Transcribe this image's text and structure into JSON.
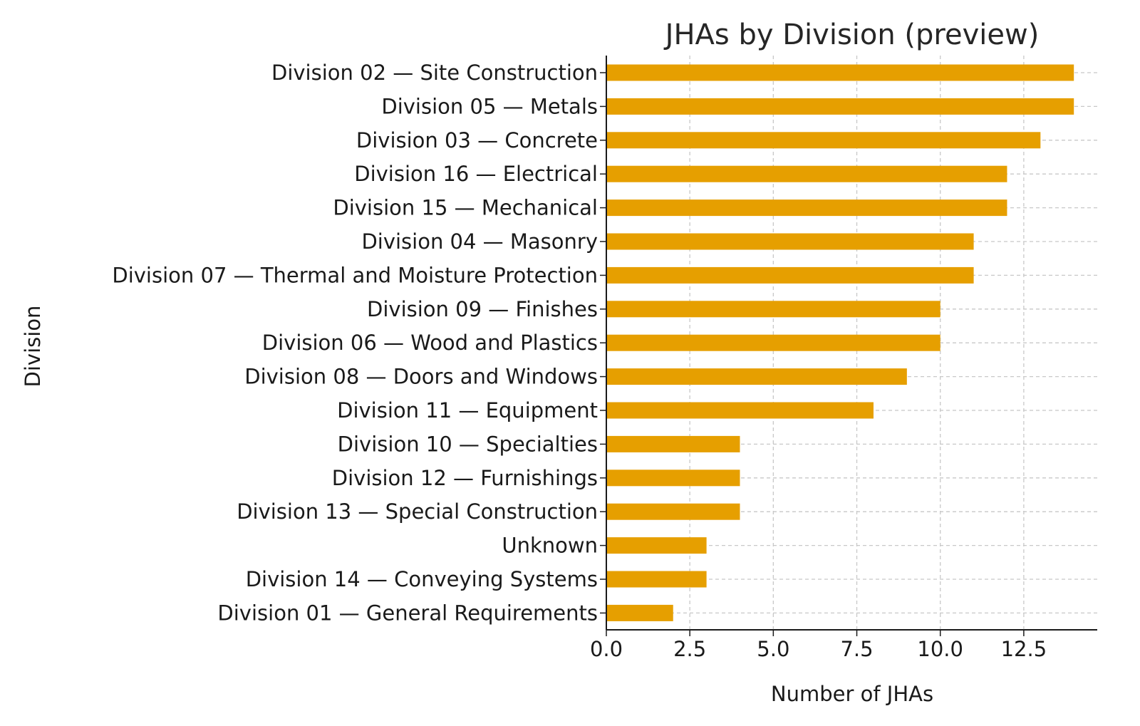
{
  "chart_data": {
    "type": "bar",
    "orientation": "horizontal",
    "title": "JHAs by Division (preview)",
    "xlabel": "Number of JHAs",
    "ylabel": "Division",
    "categories": [
      "Division 02 — Site Construction",
      "Division 05 — Metals",
      "Division 03 — Concrete",
      "Division 16 — Electrical",
      "Division 15 — Mechanical",
      "Division 04 — Masonry",
      "Division 07 — Thermal and Moisture Protection",
      "Division 09 — Finishes",
      "Division 06 — Wood and Plastics",
      "Division 08 — Doors and Windows",
      "Division 11 — Equipment",
      "Division 10 — Specialties",
      "Division 12 — Furnishings",
      "Division 13 — Special Construction",
      "Unknown",
      "Division 14 — Conveying Systems",
      "Division 01 — General Requirements"
    ],
    "values": [
      14,
      14,
      13,
      12,
      12,
      11,
      11,
      10,
      10,
      9,
      8,
      4,
      4,
      4,
      3,
      3,
      2
    ],
    "xlim": [
      0,
      14.7
    ],
    "xticks": [
      0,
      2.5,
      5,
      7.5,
      10,
      12.5
    ],
    "xtick_labels": [
      "0.0",
      "2.5",
      "5.0",
      "7.5",
      "10.0",
      "12.5"
    ],
    "grid": true,
    "grid_style": "dashed",
    "bar_color": "#E69F00",
    "grid_color": "#c8c8c8",
    "axis_color": "#1a1a1a"
  }
}
